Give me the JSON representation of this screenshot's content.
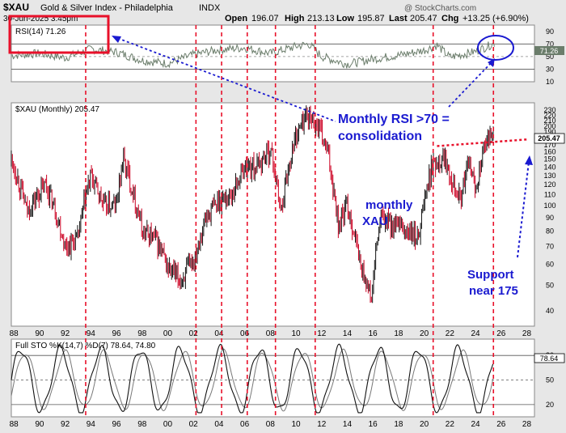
{
  "header": {
    "symbol": "$XAU",
    "name": "Gold & Silver Index - Philadelphia",
    "exchange": "INDX",
    "datetime": "30-Jun-2025 3:45pm",
    "open_label": "Open",
    "open": "196.07",
    "high_label": "High",
    "high": "213.13",
    "low_label": "Low",
    "low": "195.87",
    "last_label": "Last",
    "last": "205.47",
    "chg_label": "Chg",
    "chg": "+13.25 (+6.90%)",
    "watermark": "@ StockCharts.com"
  },
  "annotations": {
    "rsi_note_line1": "Monthly RSI >70 =",
    "rsi_note_line2": "consolidation",
    "xau_note_line1": "monthly",
    "xau_note_line2": "XAU",
    "support_line1": "Support",
    "support_line2": "near 175"
  },
  "colors": {
    "background": "#e7e7e7",
    "candle_up": "#111111",
    "candle_down": "#cc0022",
    "rsi_line": "#6b7d6b",
    "annotation_blue": "#1a1ad0",
    "highlight_red": "#e8102a",
    "stoch_k": "#111111",
    "stoch_d": "#777777"
  },
  "chart_data": [
    {
      "type": "line",
      "title": "RSI(14) 71.26",
      "indicator": "RSI(14)",
      "last_value": 71.26,
      "last_value_label": "71.26",
      "ylim": [
        10,
        100
      ],
      "y_ticks": [
        90,
        70,
        50,
        30,
        10
      ],
      "reference_lines": [
        70,
        30
      ],
      "x": [
        1988,
        1990,
        1992,
        1994,
        1996,
        1998,
        2000,
        2002,
        2004,
        2006,
        2008,
        2010,
        2011,
        2012,
        2014,
        2016,
        2018,
        2020,
        2021,
        2022,
        2024,
        2025.5
      ],
      "values": [
        52,
        55,
        48,
        62,
        57,
        44,
        39,
        53,
        61,
        64,
        55,
        66,
        70,
        50,
        38,
        46,
        52,
        60,
        68,
        49,
        58,
        71.26
      ]
    },
    {
      "type": "candlestick",
      "title": "$XAU (Monthly) 205.47",
      "last_value": 205.47,
      "last_value_label": "205.47",
      "yscale": "log",
      "ylim": [
        35,
        245
      ],
      "y_ticks": [
        230,
        220,
        210,
        200,
        190,
        180,
        170,
        160,
        150,
        140,
        130,
        120,
        110,
        100,
        90,
        80,
        70,
        60,
        50,
        40
      ],
      "x_ticks": [
        "88",
        "90",
        "92",
        "94",
        "96",
        "98",
        "00",
        "02",
        "04",
        "06",
        "08",
        "10",
        "12",
        "14",
        "16",
        "18",
        "20",
        "22",
        "24",
        "26",
        "28"
      ],
      "x": [
        1987.8,
        1989,
        1990.5,
        1992,
        1993,
        1994,
        1995,
        1996,
        1996.5,
        1998,
        1999,
        2000,
        2001,
        2002,
        2003,
        2004,
        2005,
        2006,
        2007,
        2008,
        2008.8,
        2009.5,
        2010,
        2010.8,
        2011.3,
        2011.8,
        2012.5,
        2013.3,
        2014,
        2015,
        2015.9,
        2016.6,
        2017.5,
        2018.5,
        2019.5,
        2020.6,
        2021.5,
        2022.8,
        2023.5,
        2024,
        2024.6,
        2025,
        2025.4
      ],
      "values": [
        150,
        95,
        120,
        70,
        75,
        130,
        100,
        100,
        150,
        80,
        75,
        58,
        52,
        62,
        90,
        105,
        110,
        140,
        140,
        165,
        95,
        145,
        185,
        220,
        210,
        195,
        155,
        85,
        100,
        60,
        44,
        90,
        85,
        80,
        75,
        140,
        155,
        105,
        145,
        115,
        160,
        175,
        205.47
      ],
      "trendline_support": {
        "from": [
          2021.0,
          168
        ],
        "to": [
          2028.0,
          178
        ]
      }
    },
    {
      "type": "line",
      "title": "Full STO %K(14,7) %D(7) 78.64, 74.80",
      "indicator": "Full STO %K(14,7) %D(7)",
      "series": [
        {
          "name": "%K",
          "last_value": 78.64,
          "last_value_label": "78.64"
        },
        {
          "name": "%D",
          "last_value": 74.8,
          "last_value_label": "74.80"
        }
      ],
      "ylim": [
        5,
        100
      ],
      "y_ticks": [
        80,
        50,
        20
      ],
      "reference_lines": [
        80,
        50,
        20
      ]
    }
  ],
  "cycle_marker_years": [
    1993.6,
    2002.2,
    2004.2,
    2006.2,
    2008.4,
    2011.5,
    2020.7,
    2025.4
  ],
  "x_axis_ticks": [
    "88",
    "90",
    "92",
    "94",
    "96",
    "98",
    "00",
    "02",
    "04",
    "06",
    "08",
    "10",
    "12",
    "14",
    "16",
    "18",
    "20",
    "22",
    "24",
    "26",
    "28"
  ]
}
